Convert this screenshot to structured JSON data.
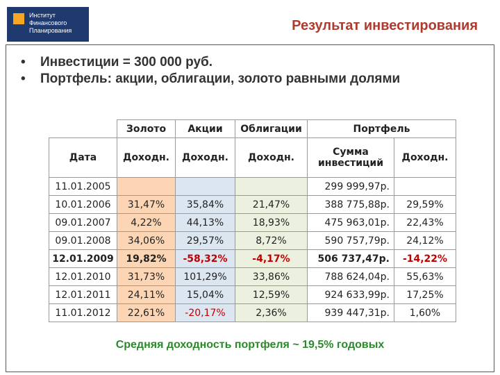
{
  "logo": {
    "lines": [
      "Институт",
      "Финансового",
      "Планирования"
    ]
  },
  "header": {
    "title": "Результат инвестирования"
  },
  "bullets": [
    "Инвестиции = 300 000 руб.",
    "Портфель: акции, облигации, золото равными долями"
  ],
  "table": {
    "groups": [
      "Золото",
      "Акции",
      "Облигации",
      "Портфель"
    ],
    "columns": [
      "Дата",
      "Доходн.",
      "Доходн.",
      "Доходн.",
      "Сумма инвестиций",
      "Доходн."
    ],
    "rows": [
      [
        "11.01.2005",
        null,
        null,
        null,
        "299 999,97р.",
        null
      ],
      [
        "10.01.2006",
        "31,47%",
        "35,84%",
        "21,47%",
        "388 775,88р.",
        "29,59%"
      ],
      [
        "09.01.2007",
        "4,22%",
        "44,13%",
        "18,93%",
        "475 963,01р.",
        "22,43%"
      ],
      [
        "09.01.2008",
        "34,06%",
        "29,57%",
        "8,72%",
        "590 757,79р.",
        "24,12%"
      ],
      [
        "12.01.2009",
        "19,82%",
        "-58,32%",
        "-4,17%",
        "506 737,47р.",
        "-14,22%"
      ],
      [
        "12.01.2010",
        "31,73%",
        "101,29%",
        "33,86%",
        "788 624,04р.",
        "55,63%"
      ],
      [
        "12.01.2011",
        "24,11%",
        "15,04%",
        "12,59%",
        "924 633,99р.",
        "17,25%"
      ],
      [
        "11.01.2012",
        "22,61%",
        "-20,17%",
        "2,36%",
        "939 447,31р.",
        "1,60%"
      ]
    ]
  },
  "footer": "Средняя доходность портфеля ~ 19,5% годовых"
}
